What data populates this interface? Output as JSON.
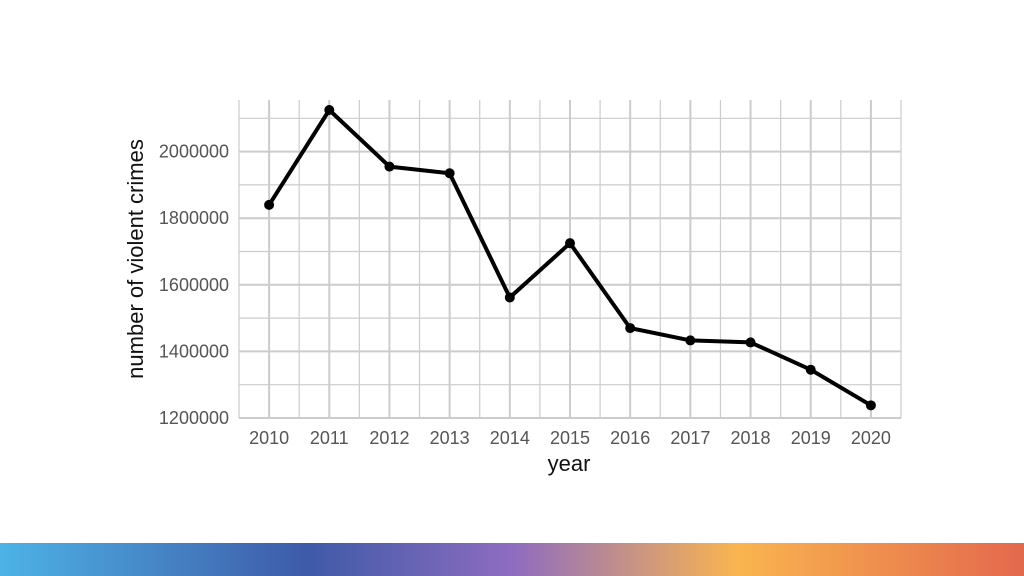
{
  "chart_data": {
    "type": "line",
    "title": "",
    "xlabel": "year",
    "ylabel": "number of violent crimes",
    "x": [
      2010,
      2011,
      2012,
      2013,
      2014,
      2015,
      2016,
      2017,
      2018,
      2019,
      2020
    ],
    "series": [
      {
        "values": [
          1840000,
          2125000,
          1955000,
          1935000,
          1562000,
          1725000,
          1470000,
          1433000,
          1427000,
          1345000,
          1238000
        ]
      }
    ],
    "y_ticks": [
      1200000,
      1400000,
      1600000,
      1800000,
      2000000
    ],
    "ylim": [
      1200000,
      2155000
    ],
    "xlim": [
      2009.5,
      2020.5
    ],
    "grid": true,
    "legend": "none",
    "line_color": "#000000",
    "grid_color": "#cccccc"
  },
  "footer_bar": {
    "colors": [
      "#4db3e6",
      "#3e5aa8",
      "#8e6cc0",
      "#f9b54f",
      "#e4684e"
    ]
  }
}
